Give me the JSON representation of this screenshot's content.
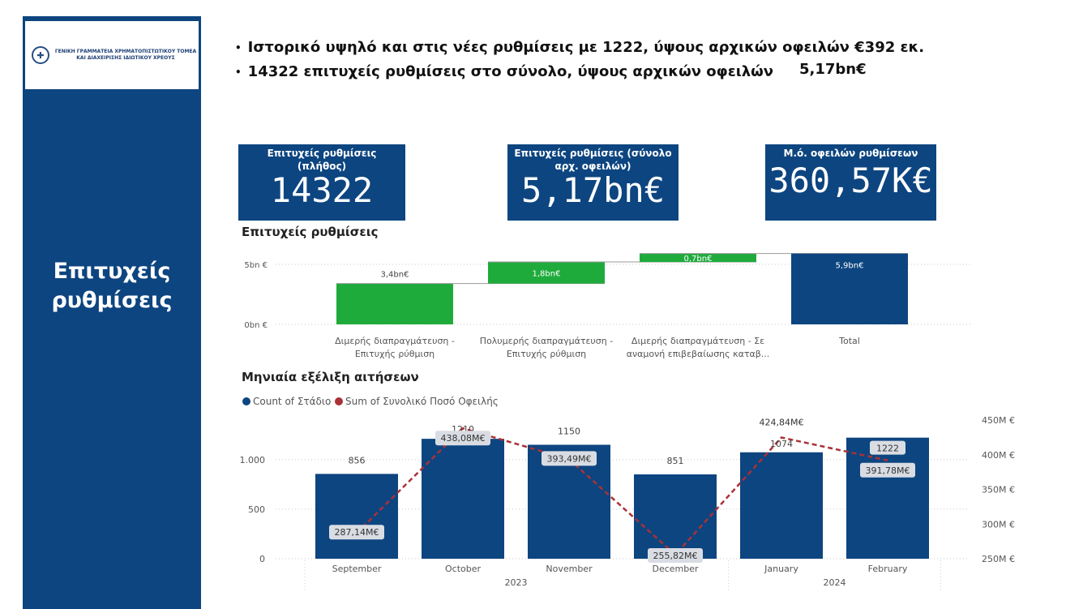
{
  "logo": {
    "line1": "ΓΕΝΙΚΗ ΓΡΑΜΜΑΤΕΙΑ ΧΡΗΜΑΤΟΠΙΣΤΩΤΙΚΟΥ ΤΟΜΕΑ",
    "line2": "ΚΑΙ ΔΙΑΧΕΙΡΙΣΗΣ ΙΔΙΩΤΙΚΟΥ ΧΡΕΟΥΣ"
  },
  "sidebar": {
    "title_line1": "Επιτυχείς",
    "title_line2": "ρυθμίσεις"
  },
  "headline": {
    "line1": "Ιστορικό υψηλό και στις νέες ρυθμίσεις με 1222, ύψους αρχικών οφειλών €392 εκ.",
    "line2": "14322  επιτυχείς ρυθμίσεις στο σύνολο, ύψους αρχικών οφειλών",
    "line2_value": "5,17bn€"
  },
  "kpis": [
    {
      "label": "Επιτυχείς ρυθμίσεις (πλήθος)",
      "value": "14322"
    },
    {
      "label": "Επιτυχείς ρυθμίσεις (σύνολο αρχ. οφειλών)",
      "value": "5,17bn€"
    },
    {
      "label": "Μ.ό. οφειλών ρυθμίσεων",
      "value": "360,57K€"
    }
  ],
  "colors": {
    "navy": "#0d4580",
    "green": "#1fab3c",
    "dashed_line": "#a93237"
  },
  "chart_data": [
    {
      "type": "bar",
      "subtype": "waterfall",
      "title": "Επιτυχείς ρυθμίσεις",
      "categories": [
        [
          "Διμερής διαπραγμάτευση -",
          "Επιτυχής ρύθμιση"
        ],
        [
          "Πολυμερής διαπραγμάτευση -",
          "Επιτυχής ρύθμιση"
        ],
        [
          "Διμερής διαπραγμάτευση - Σε",
          "αναμονή επιβεβαίωσης καταβ..."
        ],
        [
          "Total"
        ]
      ],
      "values": [
        3.4,
        1.8,
        0.7,
        5.9
      ],
      "data_labels": [
        "3,4bn€",
        "1,8bn€",
        "0,7bn€",
        "5,9bn€"
      ],
      "kinds": [
        "increase",
        "increase",
        "increase",
        "total"
      ],
      "y_ticks": [
        0,
        5
      ],
      "y_tick_labels": [
        "0bn €",
        "5bn €"
      ],
      "ylim": [
        0,
        6.0
      ]
    },
    {
      "type": "bar+line",
      "title": "Μηνιαία εξέλιξη αιτήσεων",
      "legend_position": "top-left",
      "categories": [
        "September",
        "October",
        "November",
        "December",
        "January",
        "February"
      ],
      "year_groups": [
        {
          "label": "2023",
          "span": 4
        },
        {
          "label": "2024",
          "span": 2
        }
      ],
      "series": [
        {
          "name": "Count of Στάδιο",
          "axis": "left",
          "kind": "bar",
          "values": [
            856,
            1210,
            1150,
            851,
            1074,
            1222
          ],
          "labels": [
            "856",
            "1210",
            "1150",
            "851",
            "1074",
            "1222"
          ]
        },
        {
          "name": "Sum of Συνολικό Ποσό Οφειλής",
          "axis": "right",
          "kind": "line",
          "values": [
            287.14,
            438.08,
            393.49,
            255.82,
            424.84,
            391.78
          ],
          "labels": [
            "287,14M€",
            "438,08M€",
            "393,49M€",
            "255,82M€",
            "424,84M€",
            "391,78M€"
          ]
        }
      ],
      "y_left": {
        "ticks": [
          0,
          500,
          1000
        ],
        "tick_labels": [
          "0",
          "500",
          "1.000"
        ],
        "range": [
          0,
          1350
        ]
      },
      "y_right": {
        "ticks": [
          250,
          300,
          350,
          400,
          450
        ],
        "tick_labels": [
          "250M €",
          "300M €",
          "350M €",
          "400M €",
          "450M €"
        ],
        "range": [
          250,
          450
        ]
      }
    }
  ]
}
